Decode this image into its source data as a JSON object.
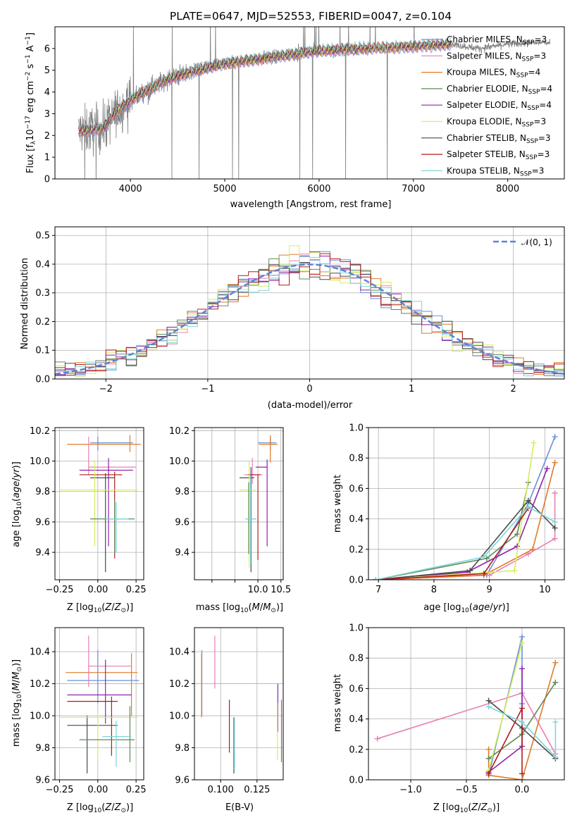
{
  "chart_data": [
    {
      "type": "line",
      "title": "PLATE=0647, MJD=52553, FIBERID=0047, z=0.104",
      "xlabel": "wavelength [Angstrom, rest frame]",
      "ylabel": "Flux [fλ10⁻¹⁷ erg cm⁻² s⁻¹ A⁻¹]",
      "xlim": [
        3200,
        8600
      ],
      "ylim": [
        0,
        7
      ],
      "xticks": [
        4000,
        5000,
        6000,
        7000,
        8000
      ],
      "yticks": [
        0,
        1,
        2,
        3,
        4,
        5,
        6
      ],
      "data_range": [
        3450,
        8450
      ],
      "model_range": [
        3450,
        7400
      ],
      "continuum_knots": [
        [
          3450,
          2.2
        ],
        [
          3700,
          2.3
        ],
        [
          3900,
          3.3
        ],
        [
          4100,
          3.9
        ],
        [
          4400,
          4.6
        ],
        [
          4700,
          5.0
        ],
        [
          5000,
          5.3
        ],
        [
          5500,
          5.6
        ],
        [
          6000,
          5.9
        ],
        [
          6500,
          6.0
        ],
        [
          7000,
          6.1
        ],
        [
          7400,
          6.2
        ],
        [
          7700,
          6.0
        ],
        [
          8000,
          6.2
        ],
        [
          8450,
          6.3
        ]
      ],
      "legend": [
        {
          "name": "Chabrier MILES, N_SSP=3",
          "color": "#6a8fd8"
        },
        {
          "name": "Salpeter MILES, N_SSP=3",
          "color": "#e87fb4"
        },
        {
          "name": "Kroupa MILES, N_SSP=4",
          "color": "#e07b27"
        },
        {
          "name": "Chabrier ELODIE, N_SSP=4",
          "color": "#5f8a5a"
        },
        {
          "name": "Salpeter ELODIE, N_SSP=4",
          "color": "#8e24aa"
        },
        {
          "name": "Kroupa ELODIE, N_SSP=3",
          "color": "#d4ee5e"
        },
        {
          "name": "Chabrier STELIB, N_SSP=3",
          "color": "#4a4a4a"
        },
        {
          "name": "Salpeter STELIB, N_SSP=3",
          "color": "#b01c1c"
        },
        {
          "name": "Kroupa STELIB, N_SSP=3",
          "color": "#7fd6d8"
        }
      ],
      "data_color": "#808080",
      "grid": false,
      "legend_position": "right"
    },
    {
      "type": "line",
      "xlabel": "(data-model)/error",
      "ylabel": "Normed distribution",
      "xlim": [
        -2.5,
        2.5
      ],
      "ylim": [
        0,
        0.53
      ],
      "xticks": [
        -2,
        -1,
        0,
        1,
        2
      ],
      "yticks": [
        0.0,
        0.1,
        0.2,
        0.3,
        0.4,
        0.5
      ],
      "grid": true,
      "reference_curve": {
        "name": "𝒩(0, 1)",
        "color": "#5b84d6",
        "style": "dashed"
      },
      "histogram_bin_width": 0.1,
      "histogram_colors": [
        "#6a8fd8",
        "#e87fb4",
        "#e07b27",
        "#5f8a5a",
        "#8e24aa",
        "#d4ee5e",
        "#4a4a4a",
        "#b01c1c",
        "#7fd6d8"
      ],
      "legend_position": "upper right"
    },
    {
      "type": "scatter",
      "panel": "age-vs-Z",
      "xlabel": "Z [log₁₀(Z/Z⊙)]",
      "ylabel": "age  [log₁₀(age/yr)]",
      "xlim": [
        -0.28,
        0.3
      ],
      "ylim": [
        9.22,
        10.22
      ],
      "xticks": [
        -0.25,
        0.0,
        0.25
      ],
      "xticklabels": [
        "−0.25",
        "0.00",
        "0.25"
      ],
      "yticks": [
        9.4,
        9.6,
        9.8,
        10.0,
        10.2
      ],
      "points": [
        {
          "x": 0.0,
          "xe": [
            -0.05,
            0.23
          ],
          "y": 10.12,
          "ye": [
            10.07,
            10.16
          ],
          "color": "#6a8fd8"
        },
        {
          "x": 0.21,
          "xe": [
            -0.2,
            0.28
          ],
          "y": 10.11,
          "ye": [
            10.06,
            10.17
          ],
          "color": "#e07b27"
        },
        {
          "x": -0.06,
          "xe": [
            -0.06,
            0.25
          ],
          "y": 9.96,
          "ye": [
            9.91,
            10.16
          ],
          "color": "#e87fb4"
        },
        {
          "x": 0.07,
          "xe": [
            -0.12,
            0.23
          ],
          "y": 9.94,
          "ye": [
            9.44,
            10.02
          ],
          "color": "#8e24aa"
        },
        {
          "x": 0.11,
          "xe": [
            -0.12,
            0.16
          ],
          "y": 9.91,
          "ye": [
            9.36,
            9.93
          ],
          "color": "#b01c1c"
        },
        {
          "x": 0.05,
          "xe": [
            -0.05,
            0.11
          ],
          "y": 9.89,
          "ye": [
            9.27,
            9.92
          ],
          "color": "#4a4a4a"
        },
        {
          "x": -0.02,
          "xe": [
            -0.25,
            0.26
          ],
          "y": 9.81,
          "ye": [
            9.44,
            10.0
          ],
          "color": "#d4ee5e"
        },
        {
          "x": 0.11,
          "xe": [
            -0.05,
            0.24
          ],
          "y": 9.62,
          "ye": [
            9.39,
            9.75
          ],
          "color": "#5f8a5a"
        },
        {
          "x": 0.12,
          "xe": [
            0.05,
            0.2
          ],
          "y": 9.62,
          "ye": [
            9.4,
            9.73
          ],
          "color": "#7fd6d8"
        }
      ]
    },
    {
      "type": "scatter",
      "panel": "age-vs-mass",
      "xlabel": "mass [log₁₀(M/M⊙)]",
      "xlim": [
        8.62,
        10.55
      ],
      "ylim": [
        9.22,
        10.22
      ],
      "xticks": [
        9.0,
        9.5,
        10.0,
        10.5
      ],
      "xticklabels": [
        "",
        "",
        "10.0",
        "10.5"
      ],
      "yticks": [
        9.4,
        9.6,
        9.8,
        10.0,
        10.2
      ],
      "points": [
        {
          "x": 10.27,
          "xe": [
            10.0,
            10.4
          ],
          "y": 10.12,
          "ye": [
            10.07,
            10.16
          ],
          "color": "#6a8fd8"
        },
        {
          "x": 10.27,
          "xe": [
            10.02,
            10.43
          ],
          "y": 10.11,
          "ye": [
            9.99,
            10.17
          ],
          "color": "#e07b27"
        },
        {
          "x": 9.88,
          "xe": [
            9.7,
            10.1
          ],
          "y": 9.91,
          "ye": [
            9.85,
            10.02
          ],
          "color": "#e87fb4"
        },
        {
          "x": 10.2,
          "xe": [
            9.95,
            10.2
          ],
          "y": 9.96,
          "ye": [
            9.44,
            10.01
          ],
          "color": "#8e24aa"
        },
        {
          "x": 10.0,
          "xe": [
            9.78,
            10.06
          ],
          "y": 9.91,
          "ye": [
            9.35,
            9.91
          ],
          "color": "#b01c1c"
        },
        {
          "x": 9.85,
          "xe": [
            9.6,
            9.92
          ],
          "y": 9.89,
          "ye": [
            9.27,
            9.96
          ],
          "color": "#4a4a4a"
        },
        {
          "x": 9.81,
          "xe": [
            9.6,
            9.96
          ],
          "y": 9.81,
          "ye": [
            9.3,
            10.0
          ],
          "color": "#d4ee5e"
        },
        {
          "x": 9.8,
          "xe": [
            9.75,
            9.96
          ],
          "y": 9.62,
          "ye": [
            9.39,
            9.86
          ],
          "color": "#5f8a5a"
        },
        {
          "x": 9.84,
          "xe": [
            9.72,
            9.95
          ],
          "y": 9.62,
          "ye": [
            9.32,
            9.9
          ],
          "color": "#7fd6d8"
        }
      ]
    },
    {
      "type": "line",
      "panel": "mass-weight-vs-age",
      "xlabel": "age  [log₁₀(age/yr)]",
      "ylabel": "mass weight",
      "xlim": [
        6.82,
        10.35
      ],
      "ylim": [
        0,
        1.0
      ],
      "xticks": [
        7,
        8,
        9,
        10
      ],
      "yticks": [
        0.0,
        0.2,
        0.4,
        0.6,
        0.8,
        1.0
      ],
      "grid": true,
      "series": [
        {
          "color": "#6a8fd8",
          "x": [
            6.95,
            8.95,
            9.7,
            10.18
          ],
          "y": [
            0.0,
            0.03,
            0.5,
            0.94
          ]
        },
        {
          "color": "#e87fb4",
          "x": [
            6.95,
            9.0,
            9.7,
            10.18,
            10.18
          ],
          "y": [
            0.0,
            0.03,
            0.17,
            0.27,
            0.57
          ]
        },
        {
          "color": "#e07b27",
          "x": [
            6.95,
            8.9,
            9.78,
            10.18
          ],
          "y": [
            0.0,
            0.03,
            0.2,
            0.77
          ]
        },
        {
          "color": "#5f8a5a",
          "x": [
            6.95,
            8.95,
            9.5,
            9.7
          ],
          "y": [
            0.0,
            0.14,
            0.3,
            0.64
          ]
        },
        {
          "color": "#8e24aa",
          "x": [
            6.95,
            8.6,
            9.5,
            10.04
          ],
          "y": [
            0.0,
            0.05,
            0.22,
            0.73
          ]
        },
        {
          "color": "#d4ee5e",
          "x": [
            6.95,
            9.45,
            9.8
          ],
          "y": [
            0.0,
            0.06,
            0.9
          ]
        },
        {
          "color": "#4a4a4a",
          "x": [
            6.95,
            8.65,
            9.7,
            10.18
          ],
          "y": [
            0.0,
            0.06,
            0.52,
            0.34
          ]
        },
        {
          "color": "#b01c1c",
          "x": [
            6.95,
            8.9,
            9.7
          ],
          "y": [
            0.0,
            0.04,
            0.47
          ]
        },
        {
          "color": "#7fd6d8",
          "x": [
            6.95,
            8.9,
            9.7,
            10.18
          ],
          "y": [
            0.0,
            0.15,
            0.48,
            0.38
          ]
        }
      ]
    },
    {
      "type": "scatter",
      "panel": "mass-vs-Z",
      "xlabel": "Z [log₁₀(Z/Z⊙)]",
      "ylabel": "mass [log₁₀(M/M⊙)]",
      "xlim": [
        -0.28,
        0.3
      ],
      "ylim": [
        9.6,
        10.55
      ],
      "xticks": [
        -0.25,
        0.0,
        0.25
      ],
      "xticklabels": [
        "−0.25",
        "0.00",
        "0.25"
      ],
      "yticks": [
        9.6,
        9.8,
        10.0,
        10.2,
        10.4
      ],
      "points": [
        {
          "x": 0.0,
          "xe": [
            -0.2,
            0.27
          ],
          "y": 10.22,
          "ye": [
            10.08,
            10.41
          ],
          "color": "#6a8fd8"
        },
        {
          "x": 0.22,
          "xe": [
            -0.21,
            0.26
          ],
          "y": 10.27,
          "ye": [
            10.0,
            10.39
          ],
          "color": "#e07b27"
        },
        {
          "x": -0.06,
          "xe": [
            -0.06,
            0.22
          ],
          "y": 10.31,
          "ye": [
            10.18,
            10.5
          ],
          "color": "#e87fb4"
        },
        {
          "x": 0.05,
          "xe": [
            -0.2,
            0.22
          ],
          "y": 10.13,
          "ye": [
            9.95,
            10.35
          ],
          "color": "#8e24aa"
        },
        {
          "x": 0.09,
          "xe": [
            -0.2,
            0.13
          ],
          "y": 10.09,
          "ye": [
            9.75,
            10.12
          ],
          "color": "#b01c1c"
        },
        {
          "x": -0.07,
          "xe": [
            -0.2,
            0.13
          ],
          "y": 9.94,
          "ye": [
            9.64,
            10.0
          ],
          "color": "#4a4a4a"
        },
        {
          "x": 0.0,
          "xe": [
            -0.25,
            0.26
          ],
          "y": 9.99,
          "ye": [
            9.72,
            10.02
          ],
          "color": "#d4ee5e"
        },
        {
          "x": 0.21,
          "xe": [
            -0.12,
            0.24
          ],
          "y": 9.85,
          "ye": [
            9.71,
            10.06
          ],
          "color": "#5f8a5a"
        },
        {
          "x": 0.12,
          "xe": [
            0.03,
            0.22
          ],
          "y": 9.87,
          "ye": [
            9.68,
            9.97
          ],
          "color": "#7fd6d8"
        }
      ]
    },
    {
      "type": "scatter",
      "panel": "mass-vs-EBV",
      "xlabel": "E(B-V)",
      "xlim": [
        0.082,
        0.143
      ],
      "ylim": [
        9.6,
        10.55
      ],
      "xticks": [
        0.1,
        0.125
      ],
      "xticklabels": [
        "0.100",
        "0.125"
      ],
      "yticks": [
        9.6,
        9.8,
        10.0,
        10.2,
        10.4
      ],
      "points": [
        {
          "x": 0.0871,
          "y": 10.2,
          "ye": [
            10.0,
            10.41
          ],
          "color": "#6a8fd8"
        },
        {
          "x": 0.0869,
          "y": 10.2,
          "ye": [
            9.99,
            10.39
          ],
          "color": "#e07b27"
        },
        {
          "x": 0.096,
          "y": 10.3,
          "ye": [
            10.17,
            10.5
          ],
          "color": "#e87fb4"
        },
        {
          "x": 0.1393,
          "y": 10.05,
          "ye": [
            9.9,
            10.2
          ],
          "color": "#8e24aa"
        },
        {
          "x": 0.106,
          "y": 9.93,
          "ye": [
            9.77,
            10.1
          ],
          "color": "#b01c1c"
        },
        {
          "x": 0.1091,
          "y": 9.82,
          "ye": [
            9.64,
            9.99
          ],
          "color": "#4a4a4a"
        },
        {
          "x": 0.139,
          "y": 9.9,
          "ye": [
            9.72,
            10.08
          ],
          "color": "#d4ee5e"
        },
        {
          "x": 0.1418,
          "y": 9.9,
          "ye": [
            9.71,
            10.1
          ],
          "color": "#5f8a5a"
        },
        {
          "x": 0.1095,
          "y": 9.82,
          "ye": [
            9.65,
            9.99
          ],
          "color": "#7fd6d8"
        }
      ]
    },
    {
      "type": "line",
      "panel": "mass-weight-vs-Z",
      "xlabel": "Z [log₁₀(Z/Z⊙)]",
      "ylabel": "mass weight",
      "xlim": [
        -1.38,
        0.38
      ],
      "ylim": [
        0,
        1.0
      ],
      "xticks": [
        -1.0,
        -0.5,
        0.0
      ],
      "xticklabels": [
        "−1.0",
        "−0.5",
        "0.0"
      ],
      "yticks": [
        0.0,
        0.2,
        0.4,
        0.6,
        0.8,
        1.0
      ],
      "grid": true,
      "series": [
        {
          "color": "#6a8fd8",
          "x": [
            -0.3,
            0.0,
            0.0
          ],
          "y": [
            0.03,
            0.94,
            0.5
          ]
        },
        {
          "color": "#e87fb4",
          "x": [
            -1.3,
            0.0,
            0.3
          ],
          "y": [
            0.27,
            0.57,
            0.17
          ]
        },
        {
          "color": "#e07b27",
          "x": [
            -0.3,
            -0.3,
            0.0,
            0.3
          ],
          "y": [
            0.2,
            0.03,
            0.0,
            0.77
          ]
        },
        {
          "color": "#5f8a5a",
          "x": [
            -0.3,
            0.0,
            0.3
          ],
          "y": [
            0.14,
            0.3,
            0.64
          ]
        },
        {
          "color": "#8e24aa",
          "x": [
            -0.3,
            0.0,
            0.0
          ],
          "y": [
            0.05,
            0.22,
            0.73
          ]
        },
        {
          "color": "#d4ee5e",
          "x": [
            -0.3,
            0.0
          ],
          "y": [
            0.06,
            0.9
          ]
        },
        {
          "color": "#4a4a4a",
          "x": [
            -0.3,
            0.0,
            0.3
          ],
          "y": [
            0.52,
            0.34,
            0.14
          ]
        },
        {
          "color": "#b01c1c",
          "x": [
            -0.3,
            0.0,
            0.0
          ],
          "y": [
            0.04,
            0.47,
            0.04
          ]
        },
        {
          "color": "#7fd6d8",
          "x": [
            -0.3,
            0.0,
            0.3,
            0.3
          ],
          "y": [
            0.48,
            0.38,
            0.15,
            0.38
          ]
        }
      ]
    }
  ]
}
